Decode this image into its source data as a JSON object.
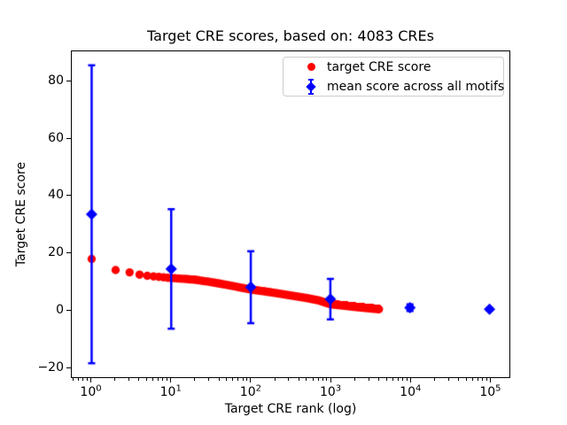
{
  "window": {
    "background": "#ffffff"
  },
  "chart_data": {
    "type": "scatter",
    "title": "Target CRE scores, based on: 4083 CREs",
    "xlabel": "Target CRE rank (log)",
    "ylabel": "Target CRE score",
    "x_scale": "log",
    "xlim_log10": [
      -0.25,
      5.25
    ],
    "ylim": [
      -23.7,
      90.7
    ],
    "x_major_tick_exponents": [
      0,
      1,
      2,
      3,
      4,
      5
    ],
    "y_ticks": [
      -20,
      0,
      20,
      40,
      60,
      80
    ],
    "grid": false,
    "legend_position": "upper right",
    "n_cres": 4083,
    "series": [
      {
        "name": "target CRE score",
        "marker": "circle",
        "color": "#ff0000",
        "n_points": 4083,
        "rank_range": [
          1,
          4083
        ],
        "anchors": [
          [
            1,
            17.8
          ],
          [
            2,
            13.9
          ],
          [
            3,
            13.1
          ],
          [
            4,
            12.3
          ],
          [
            5,
            11.9
          ],
          [
            7,
            11.5
          ],
          [
            10,
            11.1
          ],
          [
            15,
            10.8
          ],
          [
            20,
            10.5
          ],
          [
            30,
            9.8
          ],
          [
            50,
            8.7
          ],
          [
            70,
            7.9
          ],
          [
            100,
            7.1
          ],
          [
            150,
            6.4
          ],
          [
            200,
            5.9
          ],
          [
            300,
            5.1
          ],
          [
            500,
            4.1
          ],
          [
            700,
            3.3
          ],
          [
            1000,
            1.9
          ],
          [
            1500,
            1.4
          ],
          [
            2000,
            1.0
          ],
          [
            3000,
            0.5
          ],
          [
            4083,
            0.15
          ]
        ]
      },
      {
        "name": "mean score across all motifs",
        "marker": "diamond",
        "color": "#0000ff",
        "x": [
          1,
          10,
          100,
          1000,
          10000,
          100000
        ],
        "y": [
          33.5,
          14.3,
          7.9,
          3.7,
          0.7,
          0.15
        ],
        "yerr": [
          52.3,
          21.0,
          12.6,
          7.1,
          1.2,
          0.4
        ]
      }
    ]
  },
  "legend": {
    "items": [
      {
        "label": "target CRE score",
        "marker": "red-dot"
      },
      {
        "label": "mean score across all motifs",
        "marker": "blue-diamond-errorbar"
      }
    ]
  }
}
